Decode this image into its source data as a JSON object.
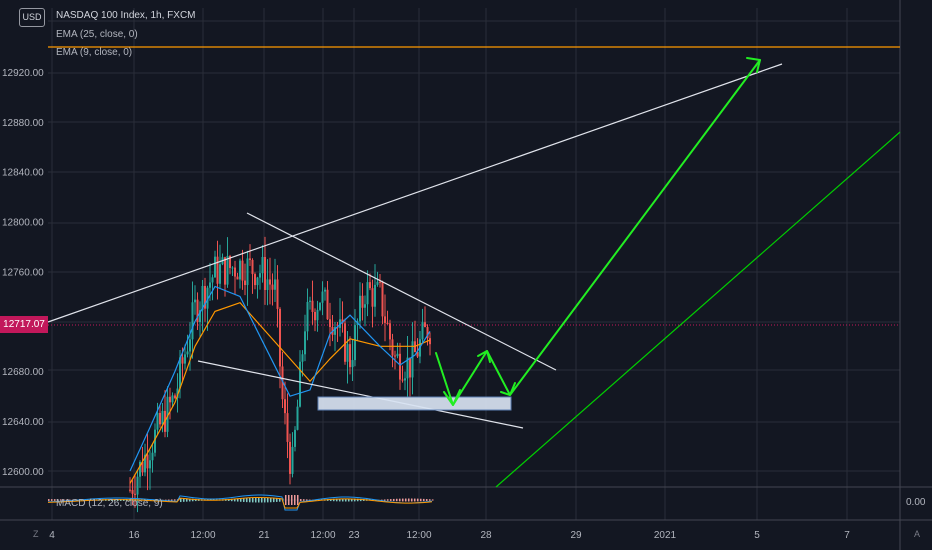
{
  "currency_button": "USD",
  "legend": {
    "symbol": "NASDAQ 100 Index, 1h, FXCM",
    "ema25": "EMA (25, close, 0)",
    "ema9": "EMA (9, close, 0)",
    "macd": "MACD (12, 26, close, 9)"
  },
  "current_price_label": "12717.07",
  "macd_zero_label": "0.00",
  "toolbar": {
    "left": "Z",
    "right": "A"
  },
  "colors": {
    "background": "#131722",
    "up_candle": "#26a69a",
    "down_candle": "#ef5350",
    "ema25": "#ff9800",
    "ema9": "#2196f3",
    "resistance_line": "#ff9800",
    "projection_arrow": "#00e600",
    "price_line": "#c2185b"
  },
  "chart_data": {
    "type": "candlestick",
    "title": "NASDAQ 100 Index, 1h, FXCM",
    "ylim": [
      12580,
      12960
    ],
    "y_ticks": [
      12600.0,
      12640.0,
      12680.0,
      12720.0,
      12760.0,
      12800.0,
      12840.0,
      12880.0,
      12920.0
    ],
    "y_tick_labels": [
      "12600.00",
      "12640.00",
      "12680.00",
      "12760.00",
      "12800.00",
      "12840.00",
      "12880.00",
      "12920.00"
    ],
    "x_tick_labels": [
      "4",
      "16",
      "12:00",
      "21",
      "12:00",
      "23",
      "12:00",
      "28",
      "29",
      "2021",
      "5",
      "7"
    ],
    "current_price": 12717.07,
    "horizontal_level": 12940,
    "support_zone": [
      12648,
      12658
    ],
    "series": [
      {
        "name": "EMA (25, close, 0)",
        "values": [
          12590,
          12618,
          12655,
          12700,
          12728,
          12735,
          12690,
          12672,
          12690,
          12706,
          12700,
          12700,
          12700,
          12705
        ]
      },
      {
        "name": "EMA (9, close, 0)",
        "values": [
          12600,
          12635,
          12680,
          12720,
          12748,
          12740,
          12660,
          12665,
          12710,
          12725,
          12700,
          12685,
          12693,
          12712
        ]
      }
    ]
  }
}
